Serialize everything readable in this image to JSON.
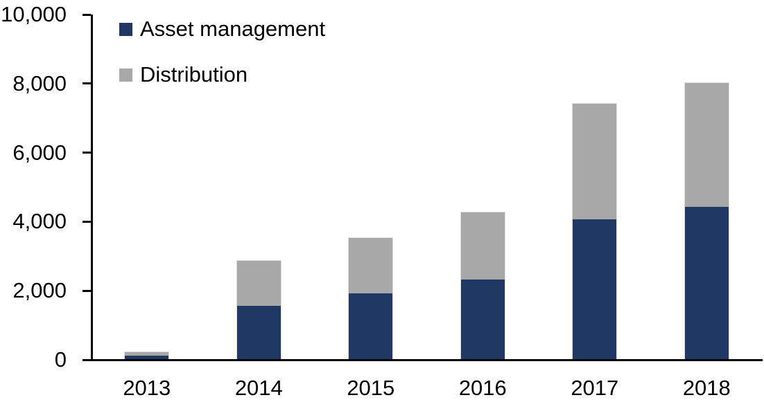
{
  "chart_data": {
    "type": "bar",
    "stacked": true,
    "title": "",
    "xlabel": "",
    "ylabel": "",
    "categories": [
      "2013",
      "2014",
      "2015",
      "2016",
      "2017",
      "2018"
    ],
    "series": [
      {
        "name": "Asset management",
        "color": "#203864",
        "values": [
          100,
          1550,
          1900,
          2300,
          4050,
          4400
        ]
      },
      {
        "name": "Distribution",
        "color": "#A8A8A8",
        "values": [
          100,
          1300,
          1600,
          1950,
          3350,
          3600
        ]
      }
    ],
    "totals": [
      200,
      2850,
      3500,
      4250,
      7400,
      8000
    ],
    "ylim": [
      0,
      10000
    ],
    "yticks": [
      {
        "value": 0,
        "label": "0"
      },
      {
        "value": 2000,
        "label": "2,000"
      },
      {
        "value": 4000,
        "label": "4,000"
      },
      {
        "value": 6000,
        "label": "6,000"
      },
      {
        "value": 8000,
        "label": "8,000"
      },
      {
        "value": 10000,
        "label": "10,000"
      }
    ],
    "grid": false,
    "legend_position": "top-left-inside",
    "axis_color": "#000000",
    "background": "#FFFFFF"
  }
}
